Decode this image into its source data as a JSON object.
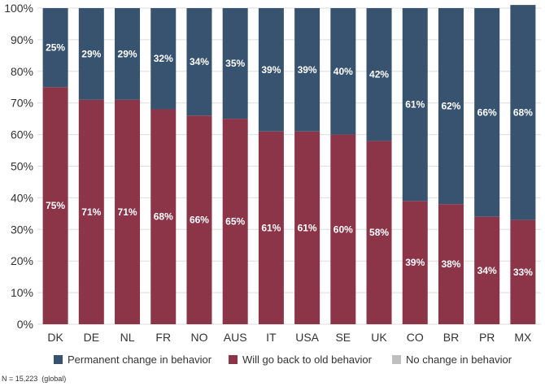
{
  "chart_data": {
    "type": "bar",
    "stacked": true,
    "categories": [
      "DK",
      "DE",
      "NL",
      "FR",
      "NO",
      "AUS",
      "IT",
      "USA",
      "SE",
      "UK",
      "CO",
      "BR",
      "PR",
      "MX"
    ],
    "series": [
      {
        "name": "Will go back to old behavior",
        "color": "#8c3549",
        "values": [
          75,
          71,
          71,
          68,
          66,
          65,
          61,
          61,
          60,
          58,
          39,
          38,
          34,
          33
        ],
        "labels": [
          "75%",
          "71%",
          "71%",
          "68%",
          "66%",
          "65%",
          "61%",
          "61%",
          "60%",
          "58%",
          "39%",
          "38%",
          "34%",
          "33%"
        ]
      },
      {
        "name": "Permanent change in behavior",
        "color": "#38536f",
        "values": [
          25,
          29,
          29,
          32,
          34,
          35,
          39,
          39,
          40,
          42,
          61,
          62,
          66,
          68
        ],
        "labels": [
          "25%",
          "29%",
          "29%",
          "32%",
          "34%",
          "35%",
          "39%",
          "39%",
          "40%",
          "42%",
          "61%",
          "62%",
          "66%",
          "68%"
        ]
      },
      {
        "name": "No change in behavior",
        "color": "#bfbfbf",
        "values": [
          0,
          0,
          0,
          0,
          0,
          0,
          0,
          0,
          0,
          0,
          0,
          0,
          0,
          0
        ]
      }
    ],
    "ylim": [
      0,
      100
    ],
    "yticks": [
      "0%",
      "10%",
      "20%",
      "30%",
      "40%",
      "50%",
      "60%",
      "70%",
      "80%",
      "90%",
      "100%"
    ],
    "grid": true,
    "legend": {
      "position": "bottom",
      "items": [
        {
          "name": "Permanent change in behavior",
          "color": "#38536f"
        },
        {
          "name": "Will go back to old behavior",
          "color": "#8c3549"
        },
        {
          "name": "No change in behavior",
          "color": "#bfbfbf"
        }
      ]
    },
    "footnote": "N = 15,223  (global)"
  }
}
